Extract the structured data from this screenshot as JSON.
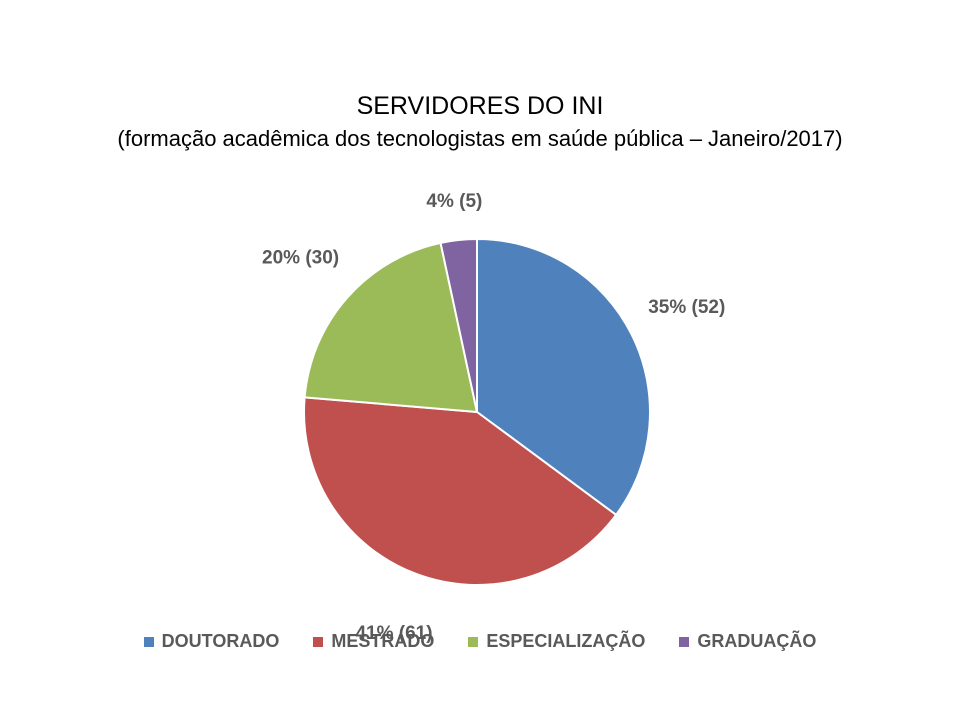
{
  "chart_data": {
    "type": "pie",
    "title": "SERVIDORES DO INI",
    "subtitle": "(formação acadêmica dos tecnologistas em saúde pública – Janeiro/2017)",
    "legend_position": "bottom",
    "slices": [
      {
        "label": "DOUTORADO",
        "value": 52,
        "percent": 35,
        "data_label": "35% (52)",
        "color": "#4F81BD"
      },
      {
        "label": "MESTRADO",
        "value": 61,
        "percent": 41,
        "data_label": "41% (61)",
        "color": "#C0504D"
      },
      {
        "label": "ESPECIALIZAÇÃO",
        "value": 30,
        "percent": 20,
        "data_label": "20% (30)",
        "color": "#9BBB59"
      },
      {
        "label": "GRADUAÇÃO",
        "value": 5,
        "percent": 4,
        "data_label": "4% (5)",
        "color": "#8064A2"
      }
    ]
  }
}
